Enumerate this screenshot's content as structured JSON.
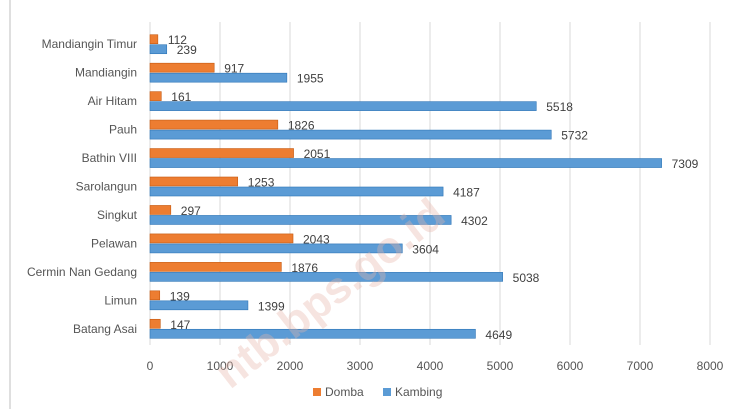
{
  "chart_data": {
    "type": "bar",
    "orientation": "horizontal",
    "categories": [
      "Mandiangin Timur",
      "Mandiangin",
      "Air Hitam",
      "Pauh",
      "Bathin VIII",
      "Sarolangun",
      "Singkut",
      "Pelawan",
      "Cermin Nan Gedang",
      "Limun",
      "Batang Asai"
    ],
    "series": [
      {
        "name": "Domba",
        "color": "#ed7d31",
        "values": [
          112,
          917,
          161,
          1826,
          2051,
          1253,
          297,
          2043,
          1876,
          139,
          147
        ]
      },
      {
        "name": "Kambing",
        "color": "#5b9bd5",
        "values": [
          239,
          1955,
          5518,
          5732,
          7309,
          4187,
          4302,
          3604,
          5038,
          1399,
          4649
        ]
      }
    ],
    "xlim": [
      0,
      8000
    ],
    "xticks": [
      0,
      1000,
      2000,
      3000,
      4000,
      5000,
      6000,
      7000,
      8000
    ],
    "grid": true,
    "legend_position": "bottom",
    "watermark": "ntb.bps.go.id"
  }
}
